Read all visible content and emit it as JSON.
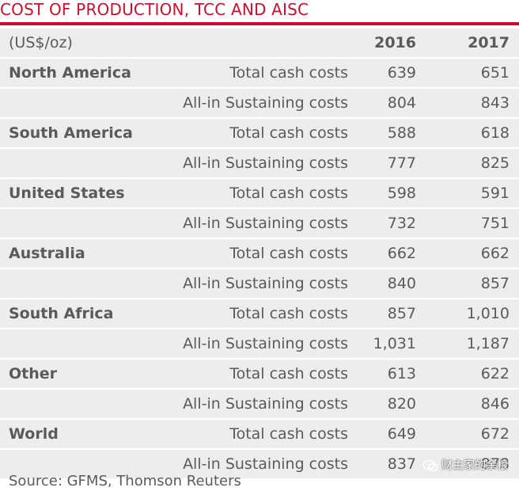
{
  "title": "COST OF PRODUCTION, TCC AND AISC",
  "header": {
    "unit": "(US$/oz)",
    "year1": "2016",
    "year2": "2017"
  },
  "rows": [
    {
      "region": "North America",
      "metric": "Total cash costs",
      "v2016": "639",
      "v2017": "651"
    },
    {
      "region": "",
      "metric": "All-in Sustaining costs",
      "v2016": "804",
      "v2017": "843"
    },
    {
      "region": "South America",
      "metric": "Total cash costs",
      "v2016": "588",
      "v2017": "618"
    },
    {
      "region": "",
      "metric": "All-in Sustaining costs",
      "v2016": "777",
      "v2017": "825"
    },
    {
      "region": "United States",
      "metric": "Total cash costs",
      "v2016": "598",
      "v2017": "591"
    },
    {
      "region": "",
      "metric": "All-in Sustaining costs",
      "v2016": "732",
      "v2017": "751"
    },
    {
      "region": "Australia",
      "metric": "Total cash costs",
      "v2016": "662",
      "v2017": "662"
    },
    {
      "region": "",
      "metric": "All-in Sustaining costs",
      "v2016": "840",
      "v2017": "857"
    },
    {
      "region": "South Africa",
      "metric": "Total cash costs",
      "v2016": "857",
      "v2017": "1,010"
    },
    {
      "region": "",
      "metric": "All-in Sustaining costs",
      "v2016": "1,031",
      "v2017": "1,187"
    },
    {
      "region": "Other",
      "metric": "Total cash costs",
      "v2016": "613",
      "v2017": "622"
    },
    {
      "region": "",
      "metric": "All-in Sustaining costs",
      "v2016": "820",
      "v2017": "846"
    },
    {
      "region": "World",
      "metric": "Total cash costs",
      "v2016": "649",
      "v2017": "672"
    },
    {
      "region": "",
      "metric": "All-in Sustaining costs",
      "v2016": "837",
      "v2017": "878"
    }
  ],
  "source": "Source: GFMS, Thomson Reuters",
  "watermark": {
    "icon": "wechat-icon",
    "text": "财主家的余粮"
  },
  "colors": {
    "accent": "#c8102e",
    "row_bg": "#ededed",
    "text": "#5a5a5a"
  }
}
